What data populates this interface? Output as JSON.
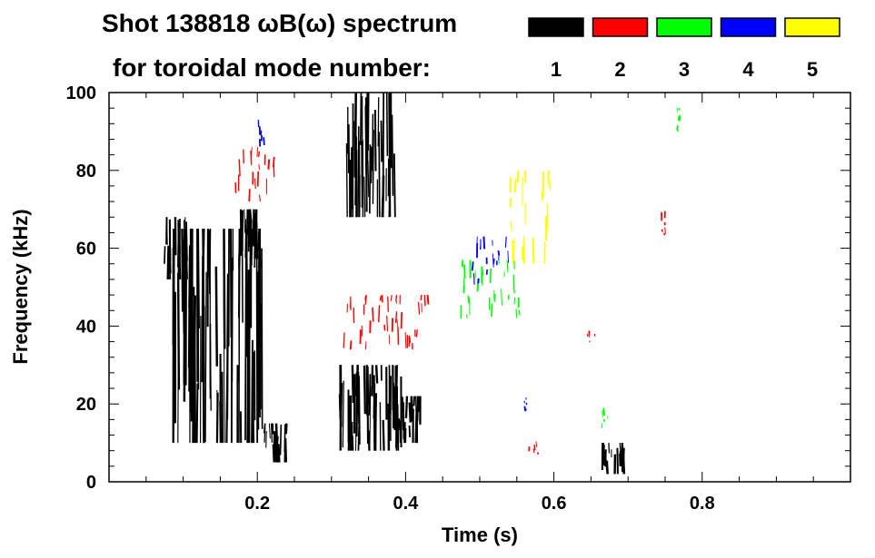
{
  "chart_data": {
    "type": "heatmap",
    "title_line1": "Shot 138818 ωB(ω) spectrum",
    "title_line2": "for toroidal mode number:",
    "xlabel": "Time (s)",
    "ylabel": "Frequency (kHz)",
    "xlim": [
      0.0,
      1.0
    ],
    "ylim": [
      0,
      100
    ],
    "x_ticks": [
      0.2,
      0.4,
      0.6,
      0.8
    ],
    "x_tick_labels": [
      "0.2",
      "0.4",
      "0.6",
      "0.8"
    ],
    "y_ticks": [
      0,
      20,
      40,
      60,
      80,
      100
    ],
    "y_tick_labels": [
      "0",
      "20",
      "40",
      "60",
      "80",
      "100"
    ],
    "legend": [
      {
        "label": "1",
        "color": "#000000"
      },
      {
        "label": "2",
        "color": "#ff0000"
      },
      {
        "label": "3",
        "color": "#00ff00"
      },
      {
        "label": "4",
        "color": "#0000ff"
      },
      {
        "label": "5",
        "color": "#ffff00"
      }
    ],
    "features": [
      {
        "mode": "1",
        "t": [
          0.075,
          0.105
        ],
        "f": [
          52,
          68
        ]
      },
      {
        "mode": "1",
        "t": [
          0.085,
          0.21
        ],
        "f": [
          10,
          65
        ]
      },
      {
        "mode": "1",
        "t": [
          0.175,
          0.205
        ],
        "f": [
          55,
          70
        ]
      },
      {
        "mode": "1",
        "t": [
          0.21,
          0.24
        ],
        "f": [
          5,
          15
        ]
      },
      {
        "mode": "1",
        "t": [
          0.32,
          0.385
        ],
        "f": [
          68,
          100
        ]
      },
      {
        "mode": "1",
        "t": [
          0.31,
          0.395
        ],
        "f": [
          8,
          30
        ]
      },
      {
        "mode": "1",
        "t": [
          0.39,
          0.42
        ],
        "f": [
          10,
          22
        ]
      },
      {
        "mode": "1",
        "t": [
          0.665,
          0.695
        ],
        "f": [
          2,
          10
        ]
      },
      {
        "mode": "2",
        "t": [
          0.17,
          0.225
        ],
        "f": [
          72,
          86
        ]
      },
      {
        "mode": "2",
        "t": [
          0.315,
          0.43
        ],
        "f": [
          34,
          48
        ]
      },
      {
        "mode": "2",
        "t": [
          0.565,
          0.58
        ],
        "f": [
          7,
          12
        ]
      },
      {
        "mode": "2",
        "t": [
          0.645,
          0.655
        ],
        "f": [
          35,
          39
        ]
      },
      {
        "mode": "2",
        "t": [
          0.745,
          0.75
        ],
        "f": [
          63,
          70
        ]
      },
      {
        "mode": "3",
        "t": [
          0.47,
          0.555
        ],
        "f": [
          42,
          57
        ]
      },
      {
        "mode": "3",
        "t": [
          0.665,
          0.675
        ],
        "f": [
          13,
          20
        ]
      },
      {
        "mode": "3",
        "t": [
          0.765,
          0.77
        ],
        "f": [
          90,
          96
        ]
      },
      {
        "mode": "4",
        "t": [
          0.49,
          0.54
        ],
        "f": [
          50,
          63
        ]
      },
      {
        "mode": "4",
        "t": [
          0.2,
          0.215
        ],
        "f": [
          86,
          93
        ]
      },
      {
        "mode": "4",
        "t": [
          0.56,
          0.565
        ],
        "f": [
          18,
          22
        ]
      },
      {
        "mode": "5",
        "t": [
          0.54,
          0.6
        ],
        "f": [
          56,
          80
        ]
      }
    ]
  }
}
